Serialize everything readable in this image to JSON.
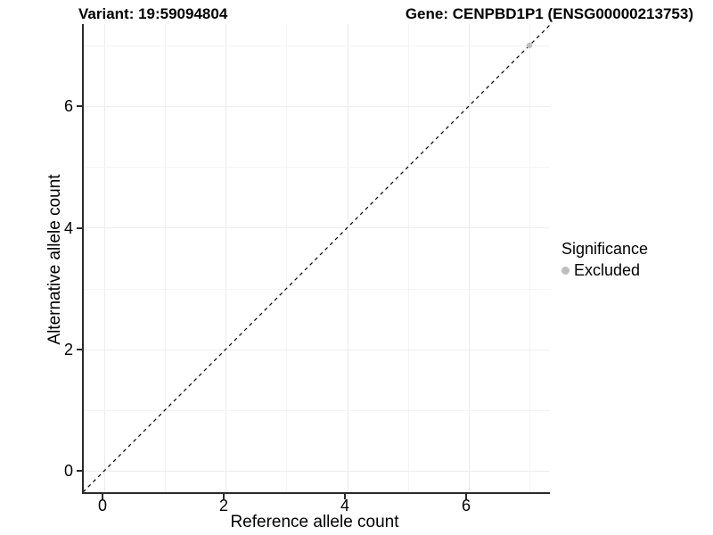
{
  "title": {
    "variant": "Variant: 19:59094804",
    "gene": "Gene: CENPBD1P1 (ENSG00000213753)"
  },
  "chart_data": {
    "type": "scatter",
    "title": "Variant: 19:59094804   Gene: CENPBD1P1 (ENSG00000213753)",
    "xlabel": "Reference allele count",
    "ylabel": "Alternative allele count",
    "xlim": [
      -0.35,
      7.35
    ],
    "ylim": [
      -0.35,
      7.35
    ],
    "x_tick_labels": [
      "0",
      "2",
      "4",
      "6"
    ],
    "y_tick_labels": [
      "0",
      "2",
      "4",
      "6"
    ],
    "x_tick_values": [
      0,
      2,
      4,
      6
    ],
    "y_tick_values": [
      0,
      2,
      4,
      6
    ],
    "grid": "light gray gridlines at every integer 0-7 on both axes",
    "series": [
      {
        "name": "Excluded",
        "marker": "circle",
        "color": "#bebebe",
        "points": [
          {
            "x": 7,
            "y": 7
          }
        ]
      }
    ],
    "reference_line": {
      "type": "identity (y = x)",
      "slope": 1,
      "intercept": 0,
      "style": "dashed",
      "color": "#000000"
    },
    "legend": {
      "title": "Significance",
      "position": "right",
      "items": [
        {
          "label": "Excluded",
          "color": "#bebebe",
          "marker": "circle"
        }
      ]
    }
  },
  "colors": {
    "background": "#ffffff",
    "axis_line": "#2a2a2a",
    "grid_major": "#ededed",
    "grid_minor": "#f4f4f4",
    "text": "#000000",
    "point": "#bebebe"
  }
}
